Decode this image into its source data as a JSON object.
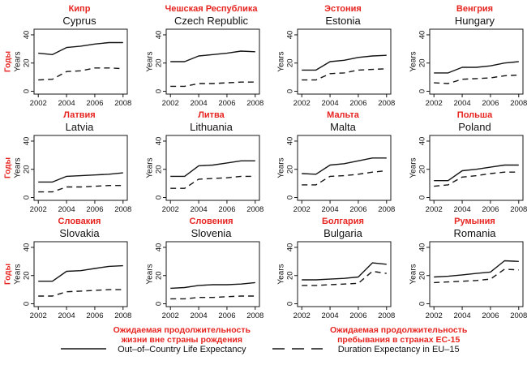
{
  "figure": {
    "accent_red": "#e62420",
    "line_black": "#141414"
  },
  "axes": {
    "ylabel_ru": "Годы",
    "ylabel_en": "Years",
    "x_ticks": [
      "2002",
      "2004",
      "2006",
      "2008"
    ],
    "x_tick_values": [
      2002,
      2004,
      2006,
      2008
    ],
    "y_ticks": [
      "0",
      "20",
      "40"
    ],
    "y_tick_values": [
      0,
      20,
      40
    ],
    "xlim": [
      2001.7,
      2008.3
    ],
    "ylim": [
      -2,
      44
    ]
  },
  "legend": {
    "solid": {
      "ru1": "Ожидаемая продолжительность",
      "ru2": "жизни вне страны рождения",
      "en": "Out–of–Country Life Expectancy"
    },
    "dashed": {
      "ru1": "Ожидаемая продолжительность",
      "ru2": "пребывания в странах ЕС-15",
      "en": "Duration Expectancy in EU–15"
    }
  },
  "chart_data": [
    {
      "type": "line",
      "title_ru": "Кипр",
      "title_en": "Cyprus",
      "x": [
        2002,
        2003,
        2004,
        2005,
        2006,
        2007,
        2008
      ],
      "series": [
        {
          "name": "out_of_country_life_expectancy",
          "style": "solid",
          "values": [
            27,
            26,
            31,
            32,
            33.5,
            34.5,
            34.5
          ]
        },
        {
          "name": "duration_expectancy_eu15",
          "style": "dashed",
          "values": [
            8,
            8.5,
            14,
            14.5,
            16.5,
            16.5,
            16
          ]
        }
      ]
    },
    {
      "type": "line",
      "title_ru": "Чешская Республика",
      "title_en": "Czech Republic",
      "x": [
        2002,
        2003,
        2004,
        2005,
        2006,
        2007,
        2008
      ],
      "series": [
        {
          "name": "out_of_country_life_expectancy",
          "style": "solid",
          "values": [
            21,
            21,
            25,
            26,
            27,
            28.5,
            28
          ]
        },
        {
          "name": "duration_expectancy_eu15",
          "style": "dashed",
          "values": [
            3.5,
            3.5,
            5.5,
            5.5,
            6,
            6.5,
            6.5
          ]
        }
      ]
    },
    {
      "type": "line",
      "title_ru": "Эстония",
      "title_en": "Estonia",
      "x": [
        2002,
        2003,
        2004,
        2005,
        2006,
        2007,
        2008
      ],
      "series": [
        {
          "name": "out_of_country_life_expectancy",
          "style": "solid",
          "values": [
            15,
            15,
            21,
            22,
            24,
            25,
            25.5
          ]
        },
        {
          "name": "duration_expectancy_eu15",
          "style": "dashed",
          "values": [
            8,
            8,
            12.5,
            13,
            15,
            15.5,
            16
          ]
        }
      ]
    },
    {
      "type": "line",
      "title_ru": "Венгрия",
      "title_en": "Hungary",
      "x": [
        2002,
        2003,
        2004,
        2005,
        2006,
        2007,
        2008
      ],
      "series": [
        {
          "name": "out_of_country_life_expectancy",
          "style": "solid",
          "values": [
            13,
            13,
            17,
            17,
            18,
            20,
            21
          ]
        },
        {
          "name": "duration_expectancy_eu15",
          "style": "dashed",
          "values": [
            6,
            5.5,
            8.5,
            9,
            9.5,
            11,
            11.5
          ]
        }
      ]
    },
    {
      "type": "line",
      "title_ru": "Латвия",
      "title_en": "Latvia",
      "x": [
        2002,
        2003,
        2004,
        2005,
        2006,
        2007,
        2008
      ],
      "series": [
        {
          "name": "out_of_country_life_expectancy",
          "style": "solid",
          "values": [
            11,
            11,
            15,
            15.5,
            16,
            16.5,
            17.5
          ]
        },
        {
          "name": "duration_expectancy_eu15",
          "style": "dashed",
          "values": [
            4,
            4,
            7.5,
            7.5,
            8,
            8.5,
            8.5
          ]
        }
      ]
    },
    {
      "type": "line",
      "title_ru": "Литва",
      "title_en": "Lithuania",
      "x": [
        2002,
        2003,
        2004,
        2005,
        2006,
        2007,
        2008
      ],
      "series": [
        {
          "name": "out_of_country_life_expectancy",
          "style": "solid",
          "values": [
            15,
            15,
            22.5,
            23,
            24.5,
            26,
            26
          ]
        },
        {
          "name": "duration_expectancy_eu15",
          "style": "dashed",
          "values": [
            6.5,
            6.5,
            13,
            13.5,
            14,
            15,
            15
          ]
        }
      ]
    },
    {
      "type": "line",
      "title_ru": "Мальта",
      "title_en": "Malta",
      "x": [
        2002,
        2003,
        2004,
        2005,
        2006,
        2007,
        2008
      ],
      "series": [
        {
          "name": "out_of_country_life_expectancy",
          "style": "solid",
          "values": [
            17,
            16.5,
            23,
            24,
            26,
            28,
            28
          ]
        },
        {
          "name": "duration_expectancy_eu15",
          "style": "dashed",
          "values": [
            9,
            9,
            15,
            15.5,
            16.5,
            18,
            19
          ]
        }
      ]
    },
    {
      "type": "line",
      "title_ru": "Польша",
      "title_en": "Poland",
      "x": [
        2002,
        2003,
        2004,
        2005,
        2006,
        2007,
        2008
      ],
      "series": [
        {
          "name": "out_of_country_life_expectancy",
          "style": "solid",
          "values": [
            12,
            12,
            19,
            20,
            21.5,
            23,
            23
          ]
        },
        {
          "name": "duration_expectancy_eu15",
          "style": "dashed",
          "values": [
            8,
            9,
            14.5,
            15.5,
            17,
            18,
            18
          ]
        }
      ]
    },
    {
      "type": "line",
      "title_ru": "Словакия",
      "title_en": "Slovakia",
      "x": [
        2002,
        2003,
        2004,
        2005,
        2006,
        2007,
        2008
      ],
      "series": [
        {
          "name": "out_of_country_life_expectancy",
          "style": "solid",
          "values": [
            16,
            16,
            23,
            23.5,
            25,
            26.5,
            27
          ]
        },
        {
          "name": "duration_expectancy_eu15",
          "style": "dashed",
          "values": [
            5.5,
            5.5,
            8.5,
            9,
            9.5,
            10,
            10
          ]
        }
      ]
    },
    {
      "type": "line",
      "title_ru": "Словения",
      "title_en": "Slovenia",
      "x": [
        2002,
        2003,
        2004,
        2005,
        2006,
        2007,
        2008
      ],
      "series": [
        {
          "name": "out_of_country_life_expectancy",
          "style": "solid",
          "values": [
            11,
            11.5,
            13,
            13.5,
            13.5,
            14,
            15
          ]
        },
        {
          "name": "duration_expectancy_eu15",
          "style": "dashed",
          "values": [
            3.5,
            3.5,
            4.5,
            4.5,
            5,
            5.5,
            5.5
          ]
        }
      ]
    },
    {
      "type": "line",
      "title_ru": "Болгария",
      "title_en": "Bulgaria",
      "x": [
        2002,
        2003,
        2004,
        2005,
        2006,
        2007,
        2008
      ],
      "series": [
        {
          "name": "out_of_country_life_expectancy",
          "style": "solid",
          "values": [
            17,
            17,
            17.5,
            18,
            19,
            29,
            28
          ]
        },
        {
          "name": "duration_expectancy_eu15",
          "style": "dashed",
          "values": [
            13,
            13,
            13.5,
            14,
            14.5,
            23,
            21.5
          ]
        }
      ]
    },
    {
      "type": "line",
      "title_ru": "Румыния",
      "title_en": "Romania",
      "x": [
        2002,
        2003,
        2004,
        2005,
        2006,
        2007,
        2008
      ],
      "series": [
        {
          "name": "out_of_country_life_expectancy",
          "style": "solid",
          "values": [
            19,
            19.5,
            20.5,
            21.5,
            22.5,
            30.5,
            30
          ]
        },
        {
          "name": "duration_expectancy_eu15",
          "style": "dashed",
          "values": [
            15,
            15.5,
            16,
            16.5,
            17.5,
            24.5,
            24
          ]
        }
      ]
    }
  ]
}
